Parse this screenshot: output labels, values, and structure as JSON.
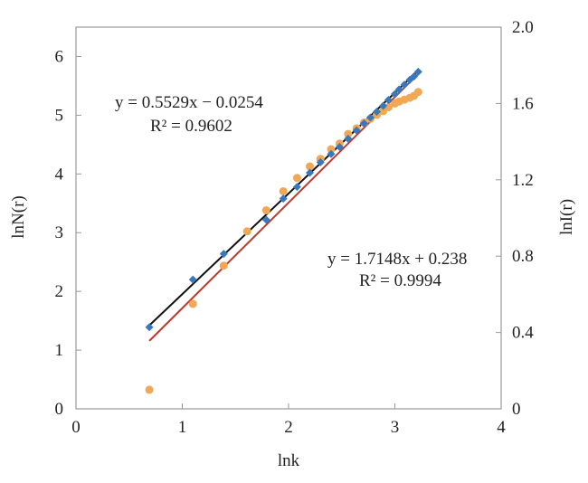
{
  "chart_data": {
    "type": "scatter",
    "xlabel": "lnk",
    "ylabel_left": "lnN(r)",
    "ylabel_right": "lnI(r)",
    "xlim": [
      0,
      4
    ],
    "ylim_left": [
      0,
      6.5
    ],
    "ylim_right": [
      0,
      2.0
    ],
    "x_ticks": [
      0,
      1,
      2,
      3,
      4
    ],
    "x_tick_labels": [
      "0",
      "1",
      "2",
      "3",
      "4"
    ],
    "y_left_ticks": [
      0,
      1,
      2,
      3,
      4,
      5,
      6
    ],
    "y_left_tick_labels": [
      "0",
      "1",
      "2",
      "3",
      "4",
      "5",
      "6"
    ],
    "y_right_ticks": [
      0,
      0.4,
      0.8,
      1.2,
      1.6,
      2.0
    ],
    "y_right_tick_labels": [
      "0",
      "0.4",
      "0.8",
      "1.2",
      "1.6",
      "2.0"
    ],
    "grid": false,
    "series": [
      {
        "axis": "left",
        "marker": "diamond",
        "color": "#3a78bd",
        "x": [
          0.69,
          1.1,
          1.39,
          1.79,
          1.95,
          2.08,
          2.2,
          2.3,
          2.4,
          2.48,
          2.56,
          2.64,
          2.71,
          2.77,
          2.83,
          2.89,
          2.94,
          3.0,
          3.04,
          3.09,
          3.14,
          3.18,
          3.22
        ],
        "y": [
          1.39,
          2.2,
          2.64,
          3.22,
          3.58,
          3.78,
          4.02,
          4.2,
          4.34,
          4.46,
          4.6,
          4.74,
          4.86,
          4.96,
          5.06,
          5.16,
          5.26,
          5.36,
          5.44,
          5.52,
          5.6,
          5.66,
          5.74
        ],
        "fit": {
          "slope": 1.7148,
          "intercept": 0.238,
          "color": "#111111"
        }
      },
      {
        "axis": "right",
        "marker": "circle",
        "color": "#f0a857",
        "x": [
          0.69,
          1.1,
          1.39,
          1.61,
          1.79,
          1.95,
          2.08,
          2.2,
          2.3,
          2.4,
          2.48,
          2.56,
          2.64,
          2.71,
          2.77,
          2.83,
          2.89,
          2.94,
          3.0,
          3.04,
          3.09,
          3.14,
          3.18,
          3.22
        ],
        "y": [
          0.1,
          0.55,
          0.75,
          0.93,
          1.04,
          1.14,
          1.21,
          1.27,
          1.31,
          1.36,
          1.39,
          1.44,
          1.47,
          1.5,
          1.52,
          1.54,
          1.56,
          1.58,
          1.6,
          1.61,
          1.62,
          1.63,
          1.64,
          1.66
        ],
        "fit": {
          "slope": 0.5529,
          "intercept": -0.0254,
          "color": "#c0392b"
        }
      }
    ],
    "annotations": {
      "eq1_line1": "y = 0.5529x − 0.0254",
      "eq1_line2": "R² = 0.9602",
      "eq2_line1": "y = 1.7148x + 0.238",
      "eq2_line2": "R² = 0.9994"
    }
  }
}
